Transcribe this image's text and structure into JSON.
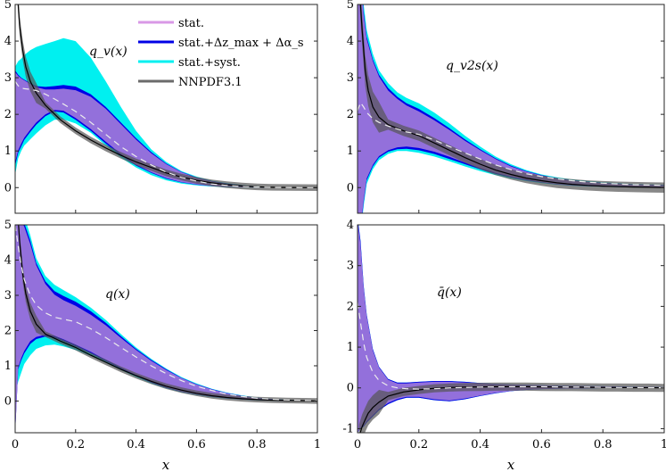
{
  "legend": [
    {
      "label": "stat.",
      "color": "#d998e6"
    },
    {
      "label": "stat.+Δz_max + Δα_s",
      "color": "#0000e6"
    },
    {
      "label": "stat.+syst.",
      "color": "#00f0f0"
    },
    {
      "label": "NNPDF3.1",
      "color": "#6b6b6b"
    }
  ],
  "colors": {
    "stat_band": "#9370db",
    "mid_band": "#0000e6",
    "syst_band": "#00f0f0",
    "nnpdf_band": "#555555",
    "nnpdf_line": "#000000",
    "central": "#ececec"
  },
  "xlabel": "x",
  "chart_data": [
    {
      "type": "area",
      "title": "q_v(x)",
      "xlim": [
        0,
        1
      ],
      "ylim": [
        -0.7,
        5
      ],
      "yticks": [
        0,
        1,
        2,
        3,
        4,
        5
      ],
      "xticks": [],
      "x": [
        0.0,
        0.01,
        0.02,
        0.03,
        0.05,
        0.07,
        0.1,
        0.13,
        0.16,
        0.2,
        0.25,
        0.3,
        0.35,
        0.4,
        0.45,
        0.5,
        0.55,
        0.6,
        0.65,
        0.7,
        0.75,
        0.8,
        0.85,
        0.9,
        0.95,
        1.0
      ],
      "central": [
        2.9,
        2.78,
        2.72,
        2.7,
        2.68,
        2.65,
        2.55,
        2.42,
        2.28,
        2.08,
        1.78,
        1.45,
        1.12,
        0.85,
        0.62,
        0.42,
        0.28,
        0.18,
        0.1,
        0.06,
        0.03,
        0.015,
        0.006,
        0.002,
        0.0,
        0.0
      ],
      "syst_upper": [
        3.3,
        3.45,
        3.52,
        3.62,
        3.75,
        3.84,
        3.92,
        4.0,
        4.08,
        4.0,
        3.55,
        2.9,
        2.2,
        1.55,
        1.05,
        0.7,
        0.45,
        0.3,
        0.19,
        0.12,
        0.07,
        0.035,
        0.015,
        0.006,
        0.002,
        0.0
      ],
      "syst_lower": [
        0.35,
        0.8,
        1.0,
        1.15,
        1.32,
        1.48,
        1.7,
        1.85,
        1.86,
        1.75,
        1.5,
        1.15,
        0.82,
        0.55,
        0.34,
        0.2,
        0.11,
        0.06,
        0.03,
        0.01,
        0.005,
        0.002,
        0.0,
        0.0,
        0.0,
        0.0
      ],
      "mid_upper": [
        3.2,
        3.08,
        3.0,
        2.95,
        2.85,
        2.77,
        2.75,
        2.77,
        2.8,
        2.76,
        2.55,
        2.2,
        1.78,
        1.35,
        0.97,
        0.66,
        0.43,
        0.28,
        0.18,
        0.11,
        0.065,
        0.03,
        0.013,
        0.005,
        0.001,
        0.0
      ],
      "mid_lower": [
        0.6,
        0.95,
        1.12,
        1.3,
        1.52,
        1.72,
        1.95,
        2.08,
        2.05,
        1.85,
        1.55,
        1.2,
        0.88,
        0.6,
        0.4,
        0.24,
        0.14,
        0.08,
        0.04,
        0.02,
        0.008,
        0.003,
        0.001,
        0.0,
        0.0,
        0.0
      ],
      "stat_upper": [
        3.15,
        3.05,
        2.98,
        2.93,
        2.83,
        2.74,
        2.68,
        2.68,
        2.7,
        2.66,
        2.48,
        2.15,
        1.73,
        1.31,
        0.94,
        0.64,
        0.42,
        0.27,
        0.17,
        0.1,
        0.06,
        0.028,
        0.012,
        0.004,
        0.001,
        0.0
      ],
      "stat_lower": [
        0.7,
        1.02,
        1.2,
        1.36,
        1.58,
        1.78,
        2.0,
        2.12,
        2.1,
        1.9,
        1.6,
        1.25,
        0.92,
        0.63,
        0.42,
        0.26,
        0.15,
        0.09,
        0.045,
        0.022,
        0.01,
        0.004,
        0.001,
        0.0,
        0.0,
        0.0
      ],
      "nnpdf_x": [
        0.005,
        0.015,
        0.025,
        0.035,
        0.05,
        0.07,
        0.1,
        0.15,
        0.2,
        0.25,
        0.3,
        0.35,
        0.4,
        0.45,
        0.5,
        0.55,
        0.6,
        0.65,
        0.7,
        0.75,
        0.8,
        0.85,
        0.9,
        0.95,
        1.0
      ],
      "nnpdf": [
        5.6,
        4.4,
        3.75,
        3.3,
        2.9,
        2.58,
        2.25,
        1.85,
        1.55,
        1.3,
        1.08,
        0.88,
        0.7,
        0.55,
        0.4,
        0.29,
        0.2,
        0.13,
        0.08,
        0.045,
        0.02,
        0.008,
        0.003,
        0.001,
        0.0
      ],
      "nnpdf_halfwidth": 0.09
    },
    {
      "type": "area",
      "title": "q_v2s(x)",
      "xlim": [
        0,
        1
      ],
      "ylim": [
        -0.7,
        5
      ],
      "yticks": [
        0,
        1,
        2,
        3,
        4,
        5
      ],
      "xticks": [],
      "x": [
        0.0,
        0.01,
        0.02,
        0.03,
        0.05,
        0.07,
        0.1,
        0.13,
        0.16,
        0.2,
        0.25,
        0.3,
        0.35,
        0.4,
        0.45,
        0.5,
        0.55,
        0.6,
        0.65,
        0.7,
        0.75,
        0.8,
        0.85,
        0.9,
        0.95,
        1.0
      ],
      "central": [
        2.1,
        2.32,
        2.2,
        2.05,
        1.88,
        1.78,
        1.68,
        1.6,
        1.52,
        1.45,
        1.3,
        1.12,
        0.95,
        0.78,
        0.62,
        0.49,
        0.38,
        0.3,
        0.24,
        0.19,
        0.15,
        0.12,
        0.1,
        0.08,
        0.07,
        0.06
      ],
      "syst_upper": [
        7.0,
        6.2,
        5.0,
        4.3,
        3.65,
        3.2,
        2.85,
        2.6,
        2.45,
        2.3,
        2.05,
        1.75,
        1.42,
        1.12,
        0.85,
        0.64,
        0.48,
        0.36,
        0.28,
        0.22,
        0.18,
        0.15,
        0.12,
        0.1,
        0.09,
        0.08
      ],
      "syst_lower": [
        -3.0,
        -1.3,
        -0.5,
        0.1,
        0.5,
        0.75,
        0.92,
        1.0,
        1.0,
        0.95,
        0.85,
        0.72,
        0.58,
        0.45,
        0.34,
        0.25,
        0.18,
        0.12,
        0.08,
        0.05,
        0.03,
        0.02,
        0.01,
        0.005,
        0.0,
        0.0
      ],
      "mid_upper": [
        6.8,
        6.0,
        4.8,
        4.12,
        3.5,
        3.08,
        2.72,
        2.48,
        2.3,
        2.15,
        1.9,
        1.62,
        1.32,
        1.05,
        0.8,
        0.6,
        0.45,
        0.34,
        0.26,
        0.2,
        0.16,
        0.13,
        0.11,
        0.09,
        0.08,
        0.07
      ],
      "mid_lower": [
        -2.9,
        -1.2,
        -0.4,
        0.2,
        0.58,
        0.82,
        0.98,
        1.05,
        1.06,
        1.02,
        0.92,
        0.78,
        0.64,
        0.5,
        0.38,
        0.28,
        0.2,
        0.14,
        0.09,
        0.06,
        0.04,
        0.025,
        0.015,
        0.008,
        0.004,
        0.0
      ],
      "stat_upper": [
        6.7,
        5.9,
        4.7,
        4.05,
        3.45,
        3.03,
        2.65,
        2.42,
        2.24,
        2.08,
        1.84,
        1.57,
        1.28,
        1.02,
        0.78,
        0.58,
        0.44,
        0.33,
        0.25,
        0.19,
        0.155,
        0.125,
        0.105,
        0.085,
        0.075,
        0.065
      ],
      "stat_lower": [
        -2.8,
        -1.1,
        -0.35,
        0.25,
        0.62,
        0.86,
        1.02,
        1.1,
        1.12,
        1.08,
        0.98,
        0.84,
        0.68,
        0.53,
        0.4,
        0.3,
        0.22,
        0.15,
        0.1,
        0.07,
        0.045,
        0.03,
        0.02,
        0.012,
        0.006,
        0.002
      ],
      "nnpdf_x": [
        0.005,
        0.015,
        0.025,
        0.035,
        0.05,
        0.07,
        0.1,
        0.15,
        0.2,
        0.25,
        0.3,
        0.35,
        0.4,
        0.45,
        0.5,
        0.55,
        0.6,
        0.65,
        0.7,
        0.75,
        0.8,
        0.85,
        0.9,
        0.95,
        1.0
      ],
      "nnpdf": [
        5.6,
        4.3,
        3.2,
        2.65,
        2.2,
        1.92,
        1.72,
        1.55,
        1.42,
        1.22,
        1.02,
        0.82,
        0.64,
        0.48,
        0.36,
        0.26,
        0.19,
        0.13,
        0.09,
        0.06,
        0.04,
        0.025,
        0.015,
        0.008,
        0.0
      ],
      "nnpdf_halfwidth": 0.14
    },
    {
      "type": "area",
      "title": "q(x)",
      "xlim": [
        0,
        1
      ],
      "ylim": [
        -0.9,
        5
      ],
      "yticks": [
        0,
        1,
        2,
        3,
        4,
        5
      ],
      "xticks": [
        0,
        0.2,
        0.4,
        0.6,
        0.8,
        1
      ],
      "x": [
        0.0,
        0.01,
        0.02,
        0.03,
        0.05,
        0.07,
        0.1,
        0.13,
        0.16,
        0.2,
        0.25,
        0.3,
        0.35,
        0.4,
        0.45,
        0.5,
        0.55,
        0.6,
        0.65,
        0.7,
        0.75,
        0.8,
        0.85,
        0.9,
        0.95,
        1.0
      ],
      "central": [
        5.0,
        4.4,
        3.85,
        3.45,
        3.0,
        2.72,
        2.5,
        2.38,
        2.32,
        2.25,
        2.05,
        1.8,
        1.52,
        1.25,
        1.0,
        0.78,
        0.58,
        0.42,
        0.3,
        0.2,
        0.13,
        0.08,
        0.05,
        0.03,
        0.02,
        0.01
      ],
      "syst_upper": [
        5.6,
        5.5,
        5.4,
        5.25,
        4.7,
        4.05,
        3.55,
        3.3,
        3.15,
        2.95,
        2.65,
        2.3,
        1.9,
        1.52,
        1.2,
        0.92,
        0.68,
        0.5,
        0.35,
        0.24,
        0.16,
        0.1,
        0.06,
        0.035,
        0.02,
        0.01
      ],
      "syst_lower": [
        0.2,
        0.55,
        0.8,
        1.05,
        1.3,
        1.48,
        1.58,
        1.6,
        1.55,
        1.45,
        1.28,
        1.08,
        0.88,
        0.68,
        0.5,
        0.36,
        0.25,
        0.17,
        0.11,
        0.07,
        0.04,
        0.02,
        0.01,
        0.005,
        0.0,
        0.0
      ],
      "mid_upper": [
        5.5,
        5.3,
        5.2,
        5.05,
        4.55,
        3.92,
        3.4,
        3.12,
        2.98,
        2.82,
        2.55,
        2.22,
        1.84,
        1.48,
        1.17,
        0.9,
        0.66,
        0.48,
        0.34,
        0.23,
        0.15,
        0.095,
        0.055,
        0.03,
        0.018,
        0.008
      ],
      "mid_lower": [
        -0.9,
        0.9,
        1.15,
        1.35,
        1.62,
        1.76,
        1.83,
        1.8,
        1.7,
        1.55,
        1.35,
        1.13,
        0.92,
        0.71,
        0.52,
        0.37,
        0.26,
        0.18,
        0.12,
        0.075,
        0.045,
        0.025,
        0.012,
        0.006,
        0.002,
        0.0
      ],
      "stat_upper": [
        5.45,
        5.25,
        5.1,
        4.95,
        4.45,
        3.85,
        3.32,
        3.02,
        2.86,
        2.7,
        2.45,
        2.15,
        1.79,
        1.45,
        1.14,
        0.88,
        0.65,
        0.47,
        0.33,
        0.22,
        0.145,
        0.09,
        0.052,
        0.028,
        0.016,
        0.007
      ],
      "stat_lower": [
        -0.9,
        0.95,
        1.22,
        1.42,
        1.7,
        1.82,
        1.88,
        1.85,
        1.75,
        1.6,
        1.4,
        1.17,
        0.95,
        0.74,
        0.55,
        0.39,
        0.27,
        0.19,
        0.125,
        0.08,
        0.048,
        0.027,
        0.014,
        0.007,
        0.003,
        0.001
      ],
      "nnpdf_x": [
        0.005,
        0.015,
        0.025,
        0.035,
        0.05,
        0.07,
        0.1,
        0.15,
        0.2,
        0.25,
        0.3,
        0.35,
        0.4,
        0.45,
        0.5,
        0.55,
        0.6,
        0.65,
        0.7,
        0.75,
        0.8,
        0.85,
        0.9,
        0.95,
        1.0
      ],
      "nnpdf": [
        5.8,
        4.5,
        3.6,
        3.05,
        2.55,
        2.18,
        1.9,
        1.7,
        1.52,
        1.3,
        1.1,
        0.9,
        0.72,
        0.56,
        0.42,
        0.31,
        0.22,
        0.15,
        0.1,
        0.065,
        0.04,
        0.025,
        0.015,
        0.008,
        0.0
      ],
      "nnpdf_halfwidth": 0.08
    },
    {
      "type": "area",
      "title": "q̄(x)",
      "xlim": [
        0,
        1
      ],
      "ylim": [
        -1.1,
        4
      ],
      "yticks": [
        -1,
        0,
        1,
        2,
        3,
        4
      ],
      "xticks": [
        0,
        0.2,
        0.4,
        0.6,
        0.8,
        1
      ],
      "x": [
        0.0,
        0.01,
        0.02,
        0.03,
        0.05,
        0.07,
        0.1,
        0.13,
        0.16,
        0.2,
        0.25,
        0.3,
        0.35,
        0.4,
        0.45,
        0.5,
        0.55,
        0.6,
        0.65,
        0.7,
        0.75,
        0.8,
        0.85,
        0.9,
        0.95,
        1.0
      ],
      "central": [
        2.1,
        1.6,
        1.1,
        0.75,
        0.38,
        0.18,
        0.05,
        0.0,
        -0.02,
        -0.03,
        -0.02,
        0.0,
        0.01,
        0.02,
        0.025,
        0.03,
        0.03,
        0.03,
        0.025,
        0.02,
        0.02,
        0.015,
        0.01,
        0.01,
        0.005,
        0.005
      ],
      "syst_upper": [
        4.2,
        3.6,
        2.5,
        1.8,
        0.95,
        0.52,
        0.22,
        0.13,
        0.13,
        0.15,
        0.17,
        0.17,
        0.15,
        0.12,
        0.1,
        0.085,
        0.075,
        0.065,
        0.055,
        0.05,
        0.045,
        0.04,
        0.035,
        0.03,
        0.025,
        0.02
      ],
      "syst_lower": [
        -1.1,
        -1.0,
        -0.95,
        -0.85,
        -0.7,
        -0.55,
        -0.4,
        -0.3,
        -0.24,
        -0.24,
        -0.3,
        -0.33,
        -0.28,
        -0.2,
        -0.13,
        -0.08,
        -0.05,
        -0.03,
        -0.02,
        -0.015,
        -0.01,
        -0.005,
        0.0,
        0.0,
        0.0,
        0.0
      ],
      "mid_upper": [
        4.2,
        3.6,
        2.5,
        1.8,
        0.95,
        0.52,
        0.22,
        0.13,
        0.13,
        0.15,
        0.17,
        0.17,
        0.15,
        0.12,
        0.1,
        0.085,
        0.075,
        0.065,
        0.055,
        0.05,
        0.045,
        0.04,
        0.035,
        0.03,
        0.025,
        0.02
      ],
      "mid_lower": [
        -1.1,
        -1.0,
        -0.95,
        -0.85,
        -0.7,
        -0.55,
        -0.4,
        -0.3,
        -0.24,
        -0.24,
        -0.3,
        -0.33,
        -0.28,
        -0.2,
        -0.13,
        -0.08,
        -0.05,
        -0.03,
        -0.02,
        -0.015,
        -0.01,
        -0.005,
        0.0,
        0.0,
        0.0,
        0.0
      ],
      "stat_upper": [
        4.1,
        3.5,
        2.45,
        1.76,
        0.92,
        0.5,
        0.2,
        0.11,
        0.11,
        0.13,
        0.15,
        0.15,
        0.13,
        0.11,
        0.09,
        0.08,
        0.07,
        0.06,
        0.05,
        0.045,
        0.04,
        0.035,
        0.03,
        0.025,
        0.02,
        0.018
      ],
      "stat_lower": [
        -1.1,
        -0.98,
        -0.92,
        -0.82,
        -0.67,
        -0.52,
        -0.37,
        -0.27,
        -0.22,
        -0.22,
        -0.28,
        -0.31,
        -0.26,
        -0.19,
        -0.12,
        -0.075,
        -0.045,
        -0.028,
        -0.018,
        -0.012,
        -0.008,
        -0.004,
        0.0,
        0.0,
        0.0,
        0.0
      ],
      "nnpdf_x": [
        0.005,
        0.015,
        0.025,
        0.035,
        0.05,
        0.07,
        0.1,
        0.15,
        0.2,
        0.25,
        0.3,
        0.35,
        0.4,
        0.45,
        0.5,
        0.55,
        0.6,
        0.65,
        0.7,
        0.75,
        0.8,
        0.85,
        0.9,
        0.95,
        1.0
      ],
      "nnpdf": [
        -1.2,
        -0.95,
        -0.78,
        -0.62,
        -0.48,
        -0.35,
        -0.2,
        -0.1,
        -0.05,
        -0.01,
        0.01,
        0.02,
        0.025,
        0.03,
        0.03,
        0.03,
        0.025,
        0.02,
        0.02,
        0.015,
        0.01,
        0.01,
        0.005,
        0.005,
        0.0
      ],
      "nnpdf_halfwidth": 0.1
    }
  ]
}
